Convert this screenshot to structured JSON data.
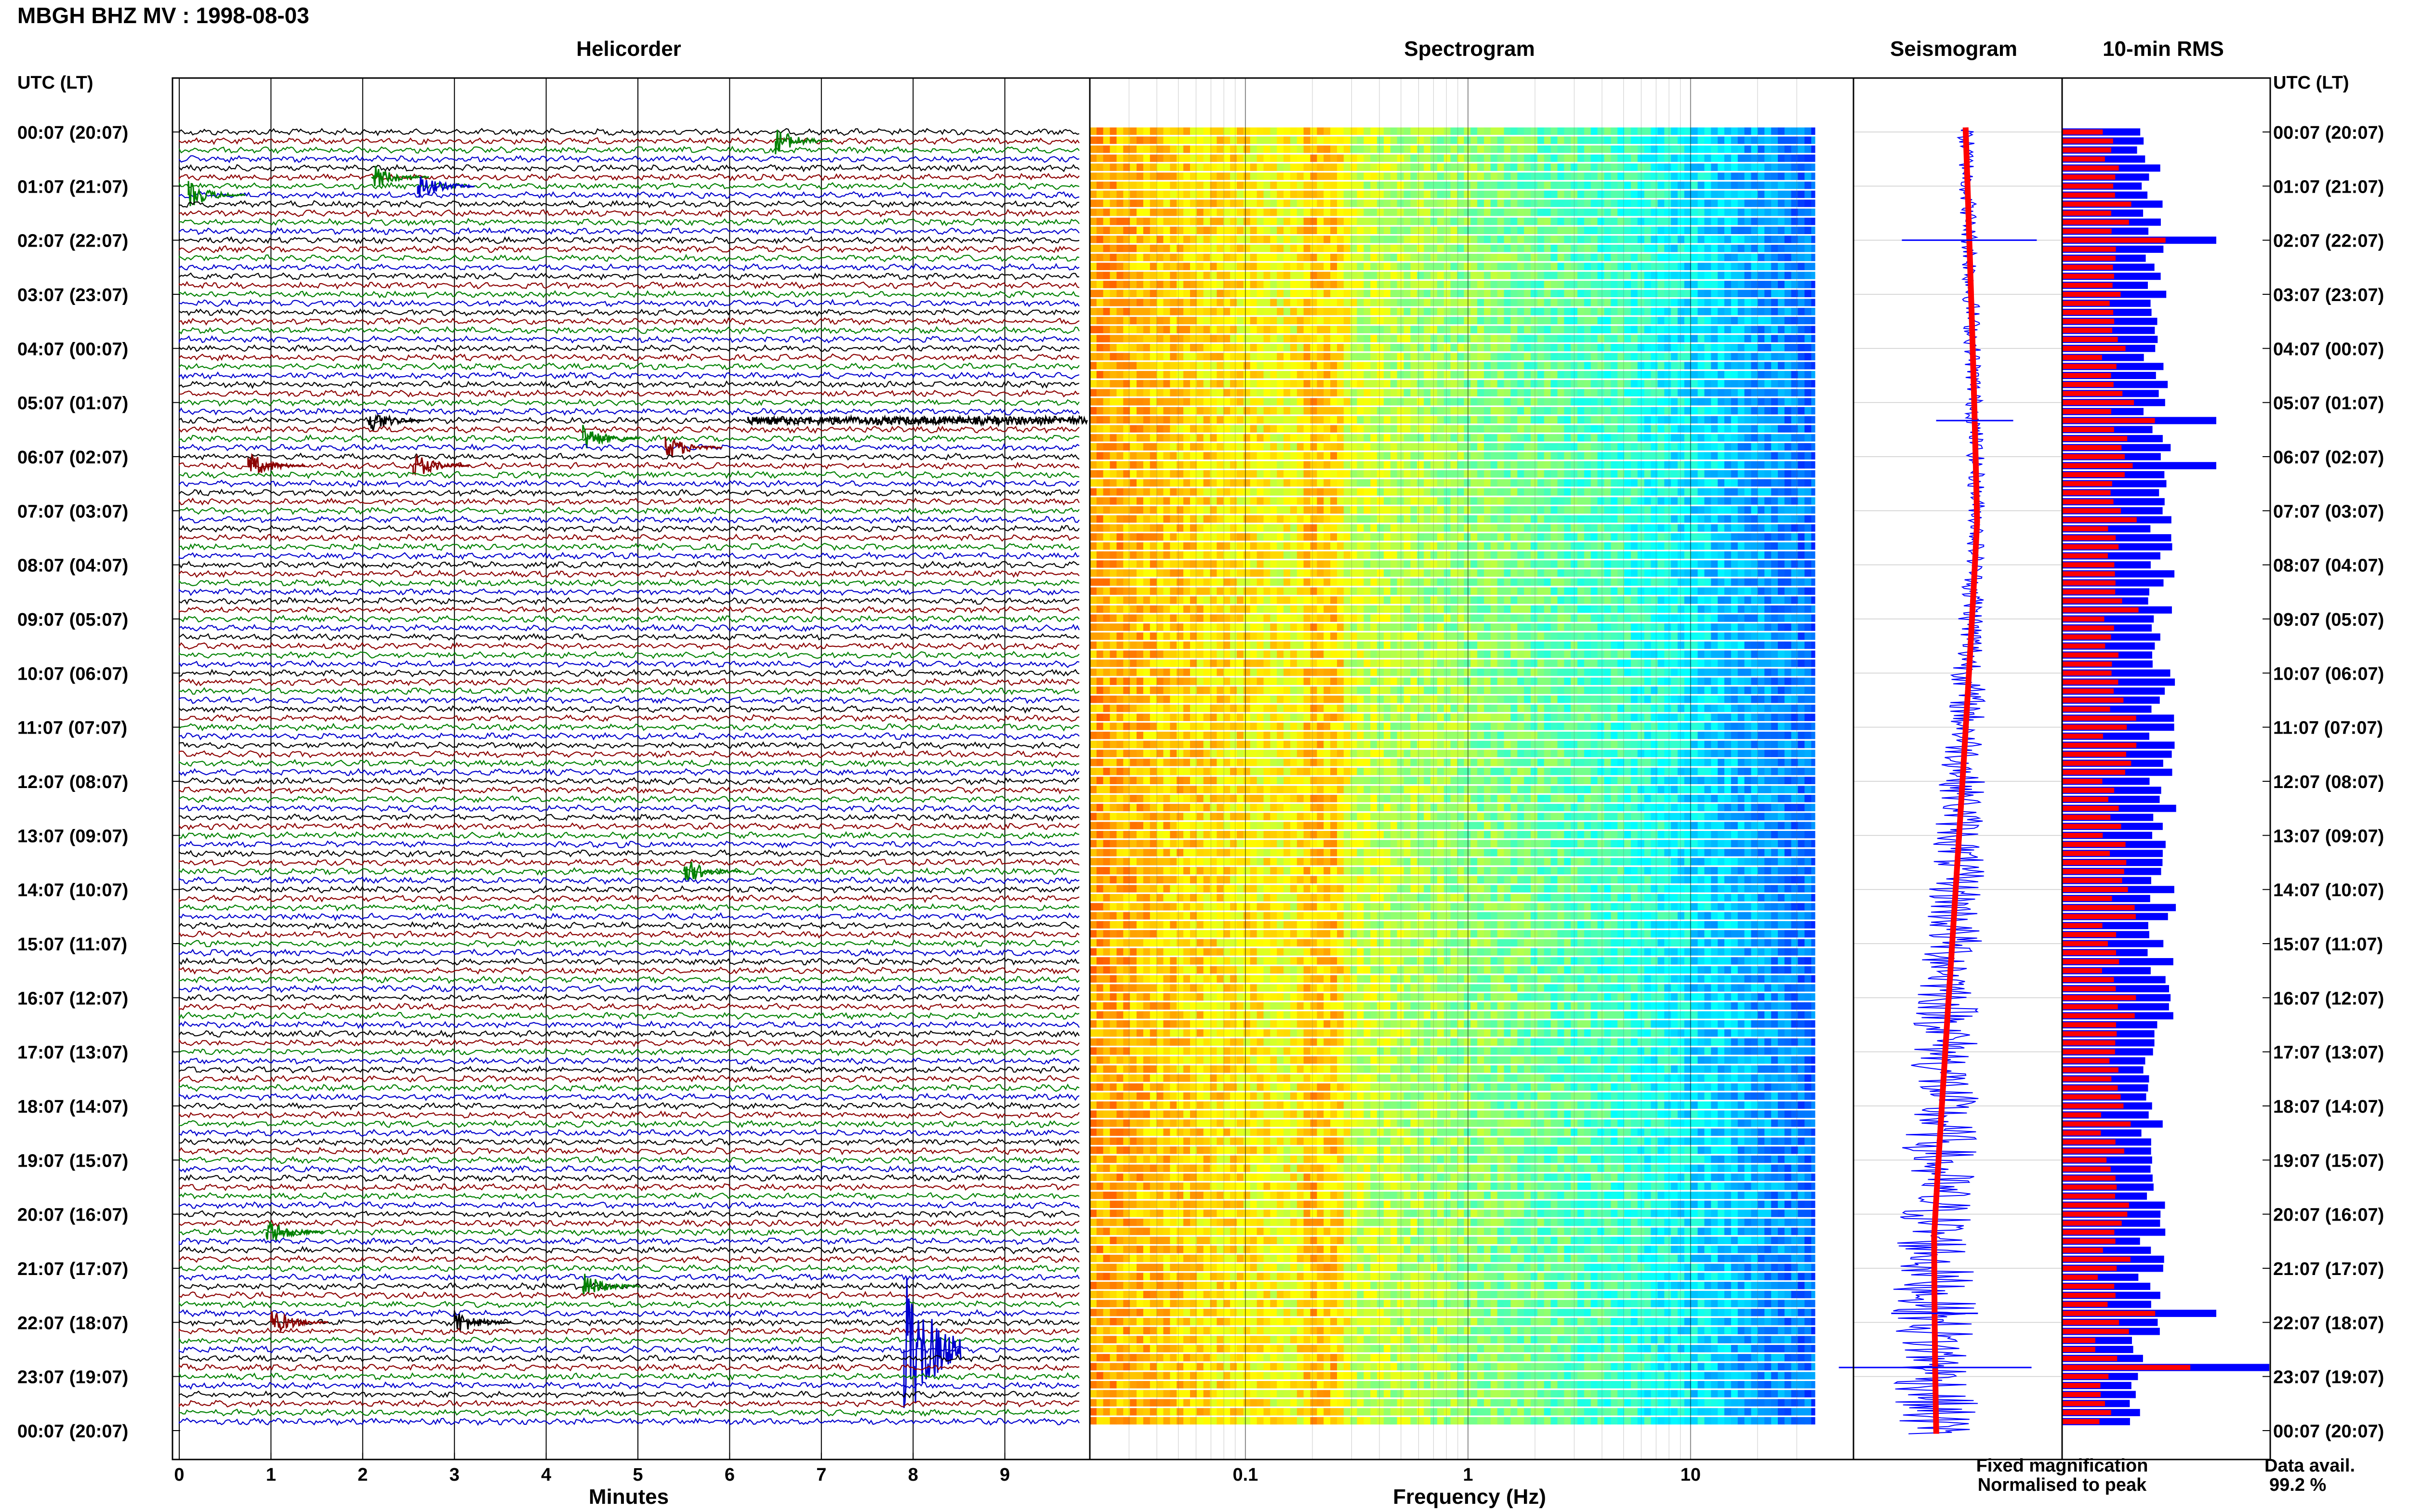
{
  "header": {
    "title": "MBGH BHZ MV : 1998-08-03"
  },
  "panels": {
    "helicorder": "Helicorder",
    "spectrogram": "Spectrogram",
    "seismogram": "Seismogram",
    "rms": "10-min RMS"
  },
  "axis": {
    "time_header_left": "UTC (LT)",
    "time_header_right": "UTC (LT)",
    "minutes_label": "Minutes",
    "frequency_label": "Frequency (Hz)"
  },
  "legend": {
    "fixed": "Fixed magnification",
    "normalised": "Normalised to peak",
    "fixed_color": "#0000ff",
    "normalised_color": "#ff0000"
  },
  "availability": {
    "label": "Data avail.",
    "value": "99.2 %"
  },
  "chart_data": [
    {
      "type": "line",
      "title": "Helicorder",
      "xlabel": "Minutes",
      "xlim": [
        0,
        10
      ],
      "x_ticks": [
        "0",
        "1",
        "2",
        "3",
        "4",
        "5",
        "6",
        "7",
        "8",
        "9"
      ],
      "row_labels": [
        "00:07 (20:07)",
        "01:07 (21:07)",
        "02:07 (22:07)",
        "03:07 (23:07)",
        "04:07 (00:07)",
        "05:07 (01:07)",
        "06:07 (02:07)",
        "07:07 (03:07)",
        "08:07 (04:07)",
        "09:07 (05:07)",
        "10:07 (06:07)",
        "11:07 (07:07)",
        "12:07 (08:07)",
        "13:07 (09:07)",
        "14:07 (10:07)",
        "15:07 (11:07)",
        "16:07 (12:07)",
        "17:07 (13:07)",
        "18:07 (14:07)",
        "19:07 (15:07)",
        "20:07 (16:07)",
        "21:07 (17:07)",
        "22:07 (18:07)",
        "23:07 (19:07)",
        "00:07 (20:07)"
      ],
      "rows_per_hour": 6,
      "trace_colors": [
        "#000000",
        "#8b0000",
        "#008000",
        "#0000cd"
      ],
      "events": [
        {
          "row": 1,
          "minute": 6.5,
          "color": "#008000"
        },
        {
          "row": 5,
          "minute": 2.1,
          "color": "#008000"
        },
        {
          "row": 6,
          "minute": 2.6,
          "color": "#0000cd"
        },
        {
          "row": 7,
          "minute": 0.1,
          "color": "#008000"
        },
        {
          "row": 32,
          "minute": 2.05,
          "color": "#000000"
        },
        {
          "row": 32,
          "minute": 6.2,
          "color": "#000000",
          "duration": 3.7
        },
        {
          "row": 34,
          "minute": 4.4,
          "color": "#008000"
        },
        {
          "row": 35,
          "minute": 5.3,
          "color": "#8b0000"
        },
        {
          "row": 37,
          "minute": 0.75,
          "color": "#8b0000"
        },
        {
          "row": 37,
          "minute": 2.55,
          "color": "#8b0000"
        },
        {
          "row": 82,
          "minute": 5.5,
          "color": "#008000"
        },
        {
          "row": 122,
          "minute": 0.95,
          "color": "#008000"
        },
        {
          "row": 128,
          "minute": 4.4,
          "color": "#008000"
        },
        {
          "row": 132,
          "minute": 1.0,
          "color": "#8b0000"
        },
        {
          "row": 132,
          "minute": 3.0,
          "color": "#000000"
        },
        {
          "row": 135,
          "minute": 7.9,
          "color": "#0000cd"
        }
      ]
    },
    {
      "type": "heatmap",
      "title": "Spectrogram",
      "xlabel": "Frequency (Hz)",
      "x_scale": "log",
      "xlim": [
        0.02,
        40
      ],
      "x_ticks": [
        0.1,
        1,
        10
      ],
      "x_tick_labels": [
        "0.1",
        "1",
        "10"
      ],
      "peak_bands_hz": [
        0.2,
        0.25
      ],
      "colormap": "jet"
    },
    {
      "type": "line",
      "title": "Seismogram",
      "series": [
        {
          "name": "Fixed magnification",
          "color": "#0000ff"
        },
        {
          "name": "Normalised to peak",
          "color": "#ff0000"
        }
      ]
    },
    {
      "type": "bar",
      "title": "10-min RMS",
      "orientation": "horizontal",
      "series": [
        {
          "name": "Fixed magnification",
          "color": "#0000ff"
        },
        {
          "name": "Normalised to peak",
          "color": "#ff0000"
        }
      ],
      "notable_peaks_rows": [
        12,
        32,
        37,
        131,
        137
      ]
    }
  ]
}
